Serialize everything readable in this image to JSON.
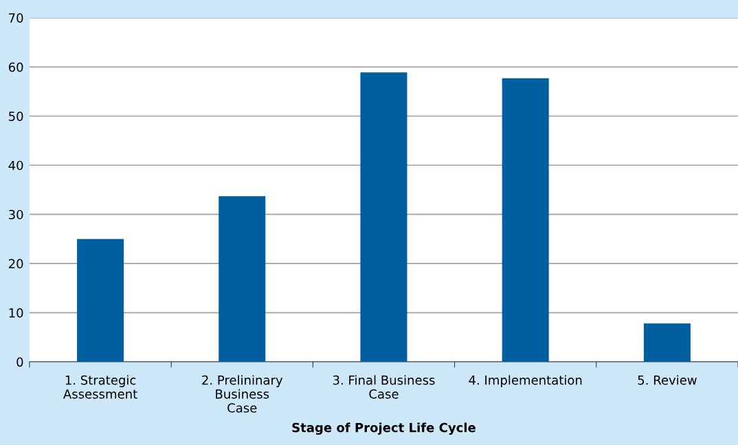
{
  "chart_data": {
    "type": "bar",
    "xlabel": "Stage of Project Life Cycle",
    "categories": [
      "1. Strategic\nAssessment",
      "2. Prelininary\nBusiness\nCase",
      "3. Final Business\nCase",
      "4. Implementation",
      "5. Review"
    ],
    "values": [
      25,
      33.7,
      58.9,
      57.7,
      7.8
    ],
    "color": "#005f9f",
    "ylim": [
      0,
      70
    ],
    "yticks": [
      0,
      10,
      20,
      30,
      40,
      50,
      60,
      70
    ],
    "grid": "y"
  }
}
